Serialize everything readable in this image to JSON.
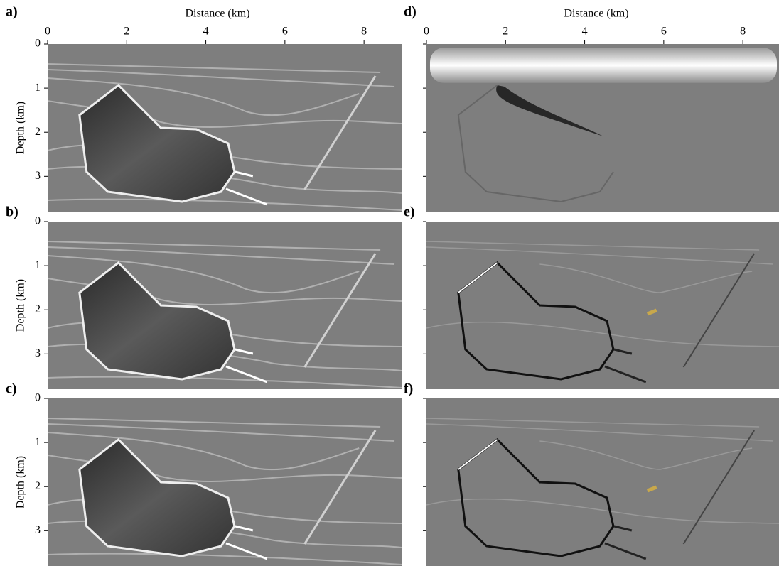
{
  "figure": {
    "x_label": "Distance (km)",
    "y_label": "Depth (km)",
    "xlim": [
      0,
      8.95
    ],
    "ylim": [
      0,
      3.8
    ],
    "xticks": [
      0,
      2,
      4,
      6,
      8
    ],
    "yticks": [
      0,
      1,
      2,
      3
    ],
    "panels": [
      {
        "label": "a)"
      },
      {
        "label": "b)"
      },
      {
        "label": "c)"
      },
      {
        "label": "d)"
      },
      {
        "label": "e)"
      },
      {
        "label": "f)"
      }
    ]
  }
}
